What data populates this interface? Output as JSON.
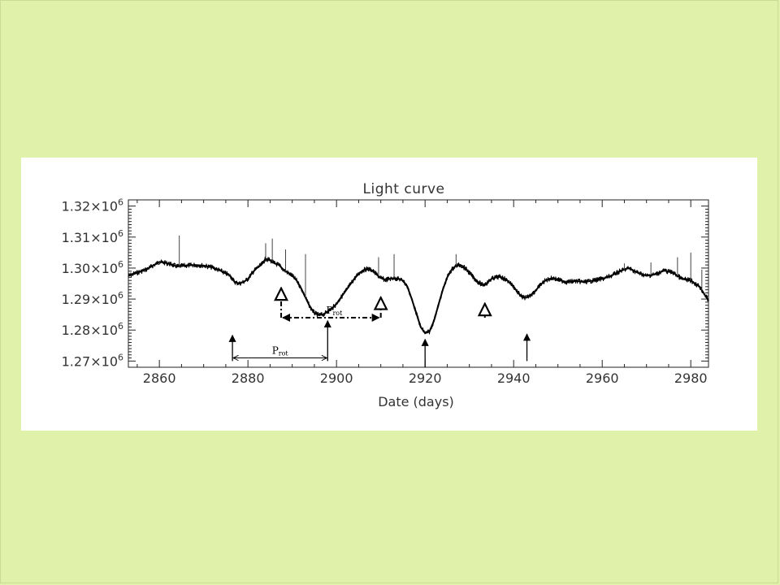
{
  "page": {
    "background_color": "#e0f2aa",
    "panel_color": "#ffffff"
  },
  "chart_data": {
    "type": "line",
    "title": "Light curve",
    "xlabel": "Date (days)",
    "ylabel": "",
    "xlim": [
      2853,
      2984
    ],
    "ylim": [
      1268000.0,
      1322000.0
    ],
    "x_ticks": [
      2860,
      2880,
      2900,
      2920,
      2940,
      2960,
      2980
    ],
    "y_ticks": [
      {
        "value": 1270000.0,
        "mantissa": "1.27×10",
        "exponent": "6"
      },
      {
        "value": 1280000.0,
        "mantissa": "1.28×10",
        "exponent": "6"
      },
      {
        "value": 1290000.0,
        "mantissa": "1.29×10",
        "exponent": "6"
      },
      {
        "value": 1300000.0,
        "mantissa": "1.30×10",
        "exponent": "6"
      },
      {
        "value": 1310000.0,
        "mantissa": "1.31×10",
        "exponent": "6"
      },
      {
        "value": 1320000.0,
        "mantissa": "1.32×10",
        "exponent": "6"
      }
    ],
    "grid": false,
    "line_color": "#000000",
    "series": [
      {
        "x": [
          2853,
          2855,
          2857,
          2860,
          2862,
          2864,
          2866,
          2868,
          2870,
          2872,
          2874,
          2876,
          2877,
          2878,
          2879,
          2880,
          2881,
          2882,
          2883,
          2884,
          2885,
          2886,
          2887,
          2888,
          2889,
          2890,
          2891,
          2892,
          2893,
          2894,
          2895,
          2896,
          2897,
          2898,
          2899,
          2900,
          2901,
          2902,
          2903,
          2904,
          2905,
          2906,
          2907,
          2908,
          2909,
          2910,
          2911,
          2912,
          2913,
          2914,
          2915,
          2916,
          2917,
          2918,
          2919,
          2920,
          2921,
          2922,
          2923,
          2924,
          2925,
          2926,
          2927,
          2928,
          2929,
          2930,
          2931,
          2932,
          2933,
          2934,
          2935,
          2936,
          2937,
          2938,
          2939,
          2940,
          2941,
          2942,
          2943,
          2944,
          2945,
          2946,
          2947,
          2948,
          2949,
          2950,
          2952,
          2954,
          2956,
          2958,
          2960,
          2962,
          2964,
          2966,
          2968,
          2970,
          2972,
          2974,
          2976,
          2978,
          2980,
          2982,
          2984
        ],
        "y": [
          1297500.0,
          1298500.0,
          1299500.0,
          1302000.0,
          1301500.0,
          1300500.0,
          1300800.0,
          1301000.0,
          1300800.0,
          1300200.0,
          1299000.0,
          1297500.0,
          1295500.0,
          1295000.0,
          1295500.0,
          1296500.0,
          1298500.0,
          1300000.0,
          1301000.0,
          1303000.0,
          1302500.0,
          1301500.0,
          1301000.0,
          1299500.0,
          1298500.0,
          1297500.0,
          1296000.0,
          1293500.0,
          1290500.0,
          1287500.0,
          1285500.0,
          1284800.0,
          1285000.0,
          1286000.0,
          1287000.0,
          1288500.0,
          1290500.0,
          1292500.0,
          1294500.0,
          1296500.0,
          1298200.0,
          1299300.0,
          1299800.0,
          1299300.0,
          1298000.0,
          1296800.0,
          1296200.0,
          1296500.0,
          1296800.0,
          1296500.0,
          1296000.0,
          1294000.0,
          1290000.0,
          1285500.0,
          1281000.0,
          1279000.0,
          1279500.0,
          1283000.0,
          1288000.0,
          1293000.0,
          1297000.0,
          1299500.0,
          1300800.0,
          1301000.0,
          1300000.0,
          1298500.0,
          1296800.0,
          1295500.0,
          1294500.0,
          1295200.0,
          1296500.0,
          1297000.0,
          1297200.0,
          1296500.0,
          1295500.0,
          1294000.0,
          1292000.0,
          1290500.0,
          1290500.0,
          1291500.0,
          1292800.0,
          1294500.0,
          1295800.0,
          1296500.0,
          1296800.0,
          1296200.0,
          1295500.0,
          1295800.0,
          1295500.0,
          1296000.0,
          1296500.0,
          1297500.0,
          1299000.0,
          1300000.0,
          1298500.0,
          1297500.0,
          1298000.0,
          1299200.0,
          1298500.0,
          1296500.0,
          1296000.0,
          1294000.0,
          1289500.0
        ]
      }
    ],
    "spikes": [
      {
        "x": 2864.5,
        "y": 1310500.0
      },
      {
        "x": 2884,
        "y": 1308000.0
      },
      {
        "x": 2885.5,
        "y": 1309500.0
      },
      {
        "x": 2888.5,
        "y": 1306000.0
      },
      {
        "x": 2893,
        "y": 1304500.0
      },
      {
        "x": 2909.5,
        "y": 1303500.0
      },
      {
        "x": 2913,
        "y": 1304500.0
      },
      {
        "x": 2927,
        "y": 1304500.0
      },
      {
        "x": 2965,
        "y": 1301500.0
      },
      {
        "x": 2971,
        "y": 1301800.0
      },
      {
        "x": 2977,
        "y": 1303500.0
      },
      {
        "x": 2980,
        "y": 1305000.0
      },
      {
        "x": 2982.5,
        "y": 1299500.0
      }
    ],
    "annotations": {
      "solid_arrows": [
        {
          "x": 2876.5,
          "y_from": 1270000.0,
          "y_to": 1278300.0
        },
        {
          "x": 2898,
          "y_from": 1270000.0,
          "y_to": 1283000.0
        },
        {
          "x": 2920,
          "y_from": 1268000.0,
          "y_to": 1277000.0
        },
        {
          "x": 2943,
          "y_from": 1270000.0,
          "y_to": 1278700.0
        }
      ],
      "open_dashed_arrows": [
        {
          "x": 2887.5,
          "y_from": 1284000.0,
          "y_to": 1293500.0
        },
        {
          "x": 2910,
          "y_from": 1284000.0,
          "y_to": 1290500.0
        },
        {
          "x": 2933.5,
          "y_from": 1284000.0,
          "y_to": 1288500.0
        }
      ],
      "period_solid": {
        "x1": 2876.5,
        "x2": 2898,
        "y": 1271000.0,
        "label": "P",
        "label_sub": "rot"
      },
      "period_dashed": {
        "x1": 2887.5,
        "x2": 2910,
        "y": 1284000.0,
        "label": "P",
        "label_sub": "rot"
      }
    }
  }
}
